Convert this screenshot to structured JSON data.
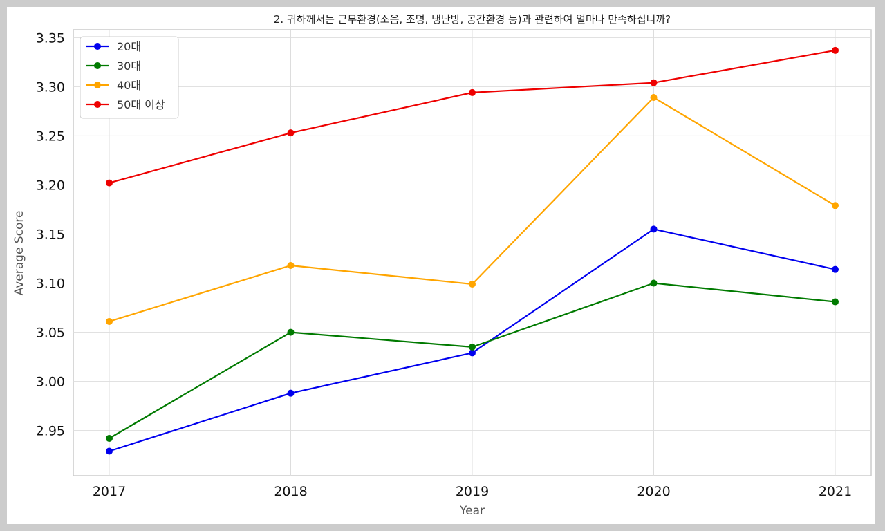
{
  "chart_data": {
    "type": "line",
    "title": "2. 귀하께서는 근무환경(소음, 조명, 냉난방, 공간환경 등)과 관련하여 얼마나 만족하십니까?",
    "xlabel": "Year",
    "ylabel": "Average Score",
    "x": [
      "2017",
      "2018",
      "2019",
      "2020",
      "2021"
    ],
    "ylim": [
      2.904,
      3.358
    ],
    "yticks": [
      "2.95",
      "3.00",
      "3.05",
      "3.10",
      "3.15",
      "3.20",
      "3.25",
      "3.30",
      "3.35"
    ],
    "grid": true,
    "legend_position": "top-left",
    "series": [
      {
        "name": "20대",
        "color": "#0000ee",
        "values": [
          2.929,
          2.988,
          3.029,
          3.155,
          3.114
        ]
      },
      {
        "name": "30대",
        "color": "#007a00",
        "values": [
          2.942,
          3.05,
          3.035,
          3.1,
          3.081
        ]
      },
      {
        "name": "40대",
        "color": "#ffa500",
        "values": [
          3.061,
          3.118,
          3.099,
          3.289,
          3.179
        ]
      },
      {
        "name": "50대 이상",
        "color": "#ee0000",
        "values": [
          3.202,
          3.253,
          3.294,
          3.304,
          3.337
        ]
      }
    ]
  }
}
